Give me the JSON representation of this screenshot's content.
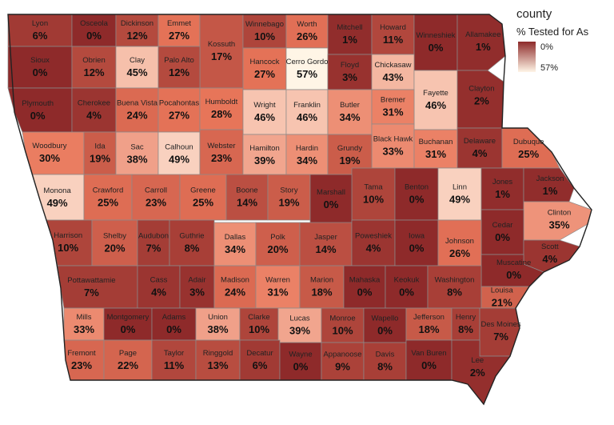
{
  "legend": {
    "title": "county",
    "subtitle": "% Tested for As",
    "min_label": "0%",
    "max_label": "57%",
    "color_low": "#fff5e6",
    "color_high": "#8e2a2a"
  },
  "chart_data": {
    "type": "heatmap",
    "region": "Iowa",
    "value_unit": "percent",
    "scale_range": [
      0,
      57
    ],
    "counties": [
      {
        "name": "Lyon",
        "pct": 6,
        "label": "6%"
      },
      {
        "name": "Osceola",
        "pct": 0,
        "label": "0%"
      },
      {
        "name": "Dickinson",
        "pct": 12,
        "label": "12%"
      },
      {
        "name": "Emmet",
        "pct": 27,
        "label": "27%"
      },
      {
        "name": "Kossuth",
        "pct": 17,
        "label": "17%"
      },
      {
        "name": "Winnebago",
        "pct": 10,
        "label": "10%"
      },
      {
        "name": "Worth",
        "pct": 26,
        "label": "26%"
      },
      {
        "name": "Mitchell",
        "pct": 1,
        "label": "1%"
      },
      {
        "name": "Howard",
        "pct": 11,
        "label": "11%"
      },
      {
        "name": "Winneshiek",
        "pct": 0,
        "label": "0%"
      },
      {
        "name": "Allamakee",
        "pct": 1,
        "label": "1%"
      },
      {
        "name": "Sioux",
        "pct": 0,
        "label": "0%"
      },
      {
        "name": "Obrien",
        "pct": 12,
        "label": "12%"
      },
      {
        "name": "Clay",
        "pct": 45,
        "label": "45%"
      },
      {
        "name": "Palo Alto",
        "pct": 12,
        "label": "12%"
      },
      {
        "name": "Hancock",
        "pct": 27,
        "label": "27%"
      },
      {
        "name": "Cerro Gordo",
        "pct": 57,
        "label": "57%"
      },
      {
        "name": "Floyd",
        "pct": 3,
        "label": "3%"
      },
      {
        "name": "Chickasaw",
        "pct": 43,
        "label": "43%"
      },
      {
        "name": "Fayette",
        "pct": 46,
        "label": "46%"
      },
      {
        "name": "Clayton",
        "pct": 2,
        "label": "2%"
      },
      {
        "name": "Plymouth",
        "pct": 0,
        "label": "0%"
      },
      {
        "name": "Cherokee",
        "pct": 4,
        "label": "4%"
      },
      {
        "name": "Buena Vista",
        "pct": 24,
        "label": "24%"
      },
      {
        "name": "Pocahontas",
        "pct": 27,
        "label": "27%"
      },
      {
        "name": "Humboldt",
        "pct": 28,
        "label": "28%"
      },
      {
        "name": "Wright",
        "pct": 46,
        "label": "46%"
      },
      {
        "name": "Franklin",
        "pct": 46,
        "label": "46%"
      },
      {
        "name": "Butler",
        "pct": 34,
        "label": "34%"
      },
      {
        "name": "Bremer",
        "pct": 31,
        "label": "31%"
      },
      {
        "name": "Black Hawk",
        "pct": 33,
        "label": "33%"
      },
      {
        "name": "Buchanan",
        "pct": 31,
        "label": "31%"
      },
      {
        "name": "Delaware",
        "pct": 4,
        "label": "4%"
      },
      {
        "name": "Dubuque",
        "pct": 25,
        "label": "25%"
      },
      {
        "name": "Woodbury",
        "pct": 30,
        "label": "30%"
      },
      {
        "name": "Ida",
        "pct": 19,
        "label": "19%"
      },
      {
        "name": "Sac",
        "pct": 38,
        "label": "38%"
      },
      {
        "name": "Calhoun",
        "pct": 49,
        "label": "49%"
      },
      {
        "name": "Webster",
        "pct": 23,
        "label": "23%"
      },
      {
        "name": "Hamilton",
        "pct": 39,
        "label": "39%"
      },
      {
        "name": "Hardin",
        "pct": 34,
        "label": "34%"
      },
      {
        "name": "Grundy",
        "pct": 19,
        "label": "19%"
      },
      {
        "name": "Tama",
        "pct": 10,
        "label": "10%"
      },
      {
        "name": "Benton",
        "pct": 0,
        "label": "0%"
      },
      {
        "name": "Linn",
        "pct": 49,
        "label": "49%"
      },
      {
        "name": "Jones",
        "pct": 1,
        "label": "1%"
      },
      {
        "name": "Jackson",
        "pct": 1,
        "label": "1%"
      },
      {
        "name": "Monona",
        "pct": 49,
        "label": "49%"
      },
      {
        "name": "Crawford",
        "pct": 25,
        "label": "25%"
      },
      {
        "name": "Carroll",
        "pct": 23,
        "label": "23%"
      },
      {
        "name": "Greene",
        "pct": 25,
        "label": "25%"
      },
      {
        "name": "Boone",
        "pct": 14,
        "label": "14%"
      },
      {
        "name": "Story",
        "pct": 19,
        "label": "19%"
      },
      {
        "name": "Marshall",
        "pct": 0,
        "label": "0%"
      },
      {
        "name": "Clinton",
        "pct": 35,
        "label": "35%"
      },
      {
        "name": "Cedar",
        "pct": 0,
        "label": "0%"
      },
      {
        "name": "Harrison",
        "pct": 10,
        "label": "10%"
      },
      {
        "name": "Shelby",
        "pct": 20,
        "label": "20%"
      },
      {
        "name": "Audubon",
        "pct": 7,
        "label": "7%"
      },
      {
        "name": "Guthrie",
        "pct": 8,
        "label": "8%"
      },
      {
        "name": "Dallas",
        "pct": 34,
        "label": "34%"
      },
      {
        "name": "Polk",
        "pct": 20,
        "label": "20%"
      },
      {
        "name": "Jasper",
        "pct": 14,
        "label": "14%"
      },
      {
        "name": "Poweshiek",
        "pct": 4,
        "label": "4%"
      },
      {
        "name": "Iowa",
        "pct": 0,
        "label": "0%"
      },
      {
        "name": "Johnson",
        "pct": 26,
        "label": "26%"
      },
      {
        "name": "Scott",
        "pct": 4,
        "label": "4%"
      },
      {
        "name": "Muscatine",
        "pct": 0,
        "label": "0%"
      },
      {
        "name": "Pottawattamie",
        "pct": 7,
        "label": "7%"
      },
      {
        "name": "Cass",
        "pct": 4,
        "label": "4%"
      },
      {
        "name": "Adair",
        "pct": 3,
        "label": "3%"
      },
      {
        "name": "Madison",
        "pct": 24,
        "label": "24%"
      },
      {
        "name": "Warren",
        "pct": 31,
        "label": "31%"
      },
      {
        "name": "Marion",
        "pct": 18,
        "label": "18%"
      },
      {
        "name": "Mahaska",
        "pct": 0,
        "label": "0%"
      },
      {
        "name": "Keokuk",
        "pct": 0,
        "label": "0%"
      },
      {
        "name": "Washington",
        "pct": 8,
        "label": "8%"
      },
      {
        "name": "Louisa",
        "pct": 21,
        "label": "21%"
      },
      {
        "name": "Mills",
        "pct": 33,
        "label": "33%"
      },
      {
        "name": "Montgomery",
        "pct": 0,
        "label": "0%"
      },
      {
        "name": "Adams",
        "pct": 0,
        "label": "0%"
      },
      {
        "name": "Union",
        "pct": 38,
        "label": "38%"
      },
      {
        "name": "Clarke",
        "pct": 10,
        "label": "10%"
      },
      {
        "name": "Lucas",
        "pct": 39,
        "label": "39%"
      },
      {
        "name": "Monroe",
        "pct": 10,
        "label": "10%"
      },
      {
        "name": "Wapello",
        "pct": 0,
        "label": "0%"
      },
      {
        "name": "Jefferson",
        "pct": 18,
        "label": "18%"
      },
      {
        "name": "Henry",
        "pct": 8,
        "label": "8%"
      },
      {
        "name": "Des Moines",
        "pct": 7,
        "label": "7%"
      },
      {
        "name": "Fremont",
        "pct": 23,
        "label": "23%"
      },
      {
        "name": "Page",
        "pct": 22,
        "label": "22%"
      },
      {
        "name": "Taylor",
        "pct": 11,
        "label": "11%"
      },
      {
        "name": "Ringgold",
        "pct": 13,
        "label": "13%"
      },
      {
        "name": "Decatur",
        "pct": 6,
        "label": "6%"
      },
      {
        "name": "Wayne",
        "pct": 0,
        "label": "0%"
      },
      {
        "name": "Appanoose",
        "pct": 9,
        "label": "9%"
      },
      {
        "name": "Davis",
        "pct": 8,
        "label": "8%"
      },
      {
        "name": "Van Buren",
        "pct": 0,
        "label": "0%"
      },
      {
        "name": "Lee",
        "pct": 2,
        "label": "2%"
      }
    ]
  }
}
